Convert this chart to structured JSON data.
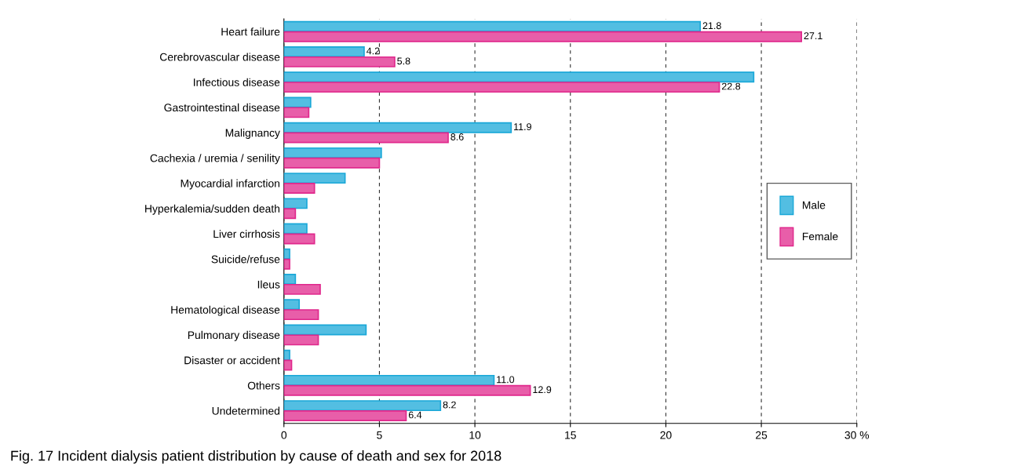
{
  "chart_data": {
    "type": "bar",
    "orientation": "horizontal",
    "categories": [
      "Heart failure",
      "Cerebrovascular disease",
      "Infectious disease",
      "Gastrointestinal disease",
      "Malignancy",
      "Cachexia / uremia / senility",
      "Myocardial infarction",
      "Hyperkalemia/sudden death",
      "Liver cirrhosis",
      "Suicide/refuse",
      "Ileus",
      "Hematological disease",
      "Pulmonary disease",
      "Disaster or accident",
      "Others",
      "Undetermined"
    ],
    "series": [
      {
        "name": "Male",
        "color": "#1aa8d8",
        "values": [
          21.8,
          4.2,
          24.6,
          1.4,
          11.9,
          5.1,
          3.2,
          1.2,
          1.2,
          0.3,
          0.6,
          0.8,
          4.3,
          0.3,
          11.0,
          8.2
        ],
        "value_labels": [
          "21.8",
          "4.2",
          null,
          null,
          "11.9",
          null,
          null,
          null,
          null,
          null,
          null,
          null,
          null,
          null,
          "11.0",
          "8.2"
        ]
      },
      {
        "name": "Female",
        "color": "#e0288c",
        "values": [
          27.1,
          5.8,
          22.8,
          1.3,
          8.6,
          5.0,
          1.6,
          0.6,
          1.6,
          0.3,
          1.9,
          1.8,
          1.8,
          0.4,
          12.9,
          6.4
        ],
        "value_labels": [
          "27.1",
          "5.8",
          "22.8",
          null,
          "8.6",
          null,
          null,
          null,
          null,
          null,
          null,
          null,
          null,
          null,
          "12.9",
          "6.4"
        ]
      }
    ],
    "xlim": [
      0,
      30
    ],
    "xticks": [
      0,
      5,
      10,
      15,
      20,
      25,
      {
        "value": 30,
        "label": "30 %"
      }
    ],
    "grid": "x",
    "legend": "right",
    "annotations": [
      "Fig. 17 Incident dialysis patient distribution by cause of death and sex for 2018"
    ]
  }
}
